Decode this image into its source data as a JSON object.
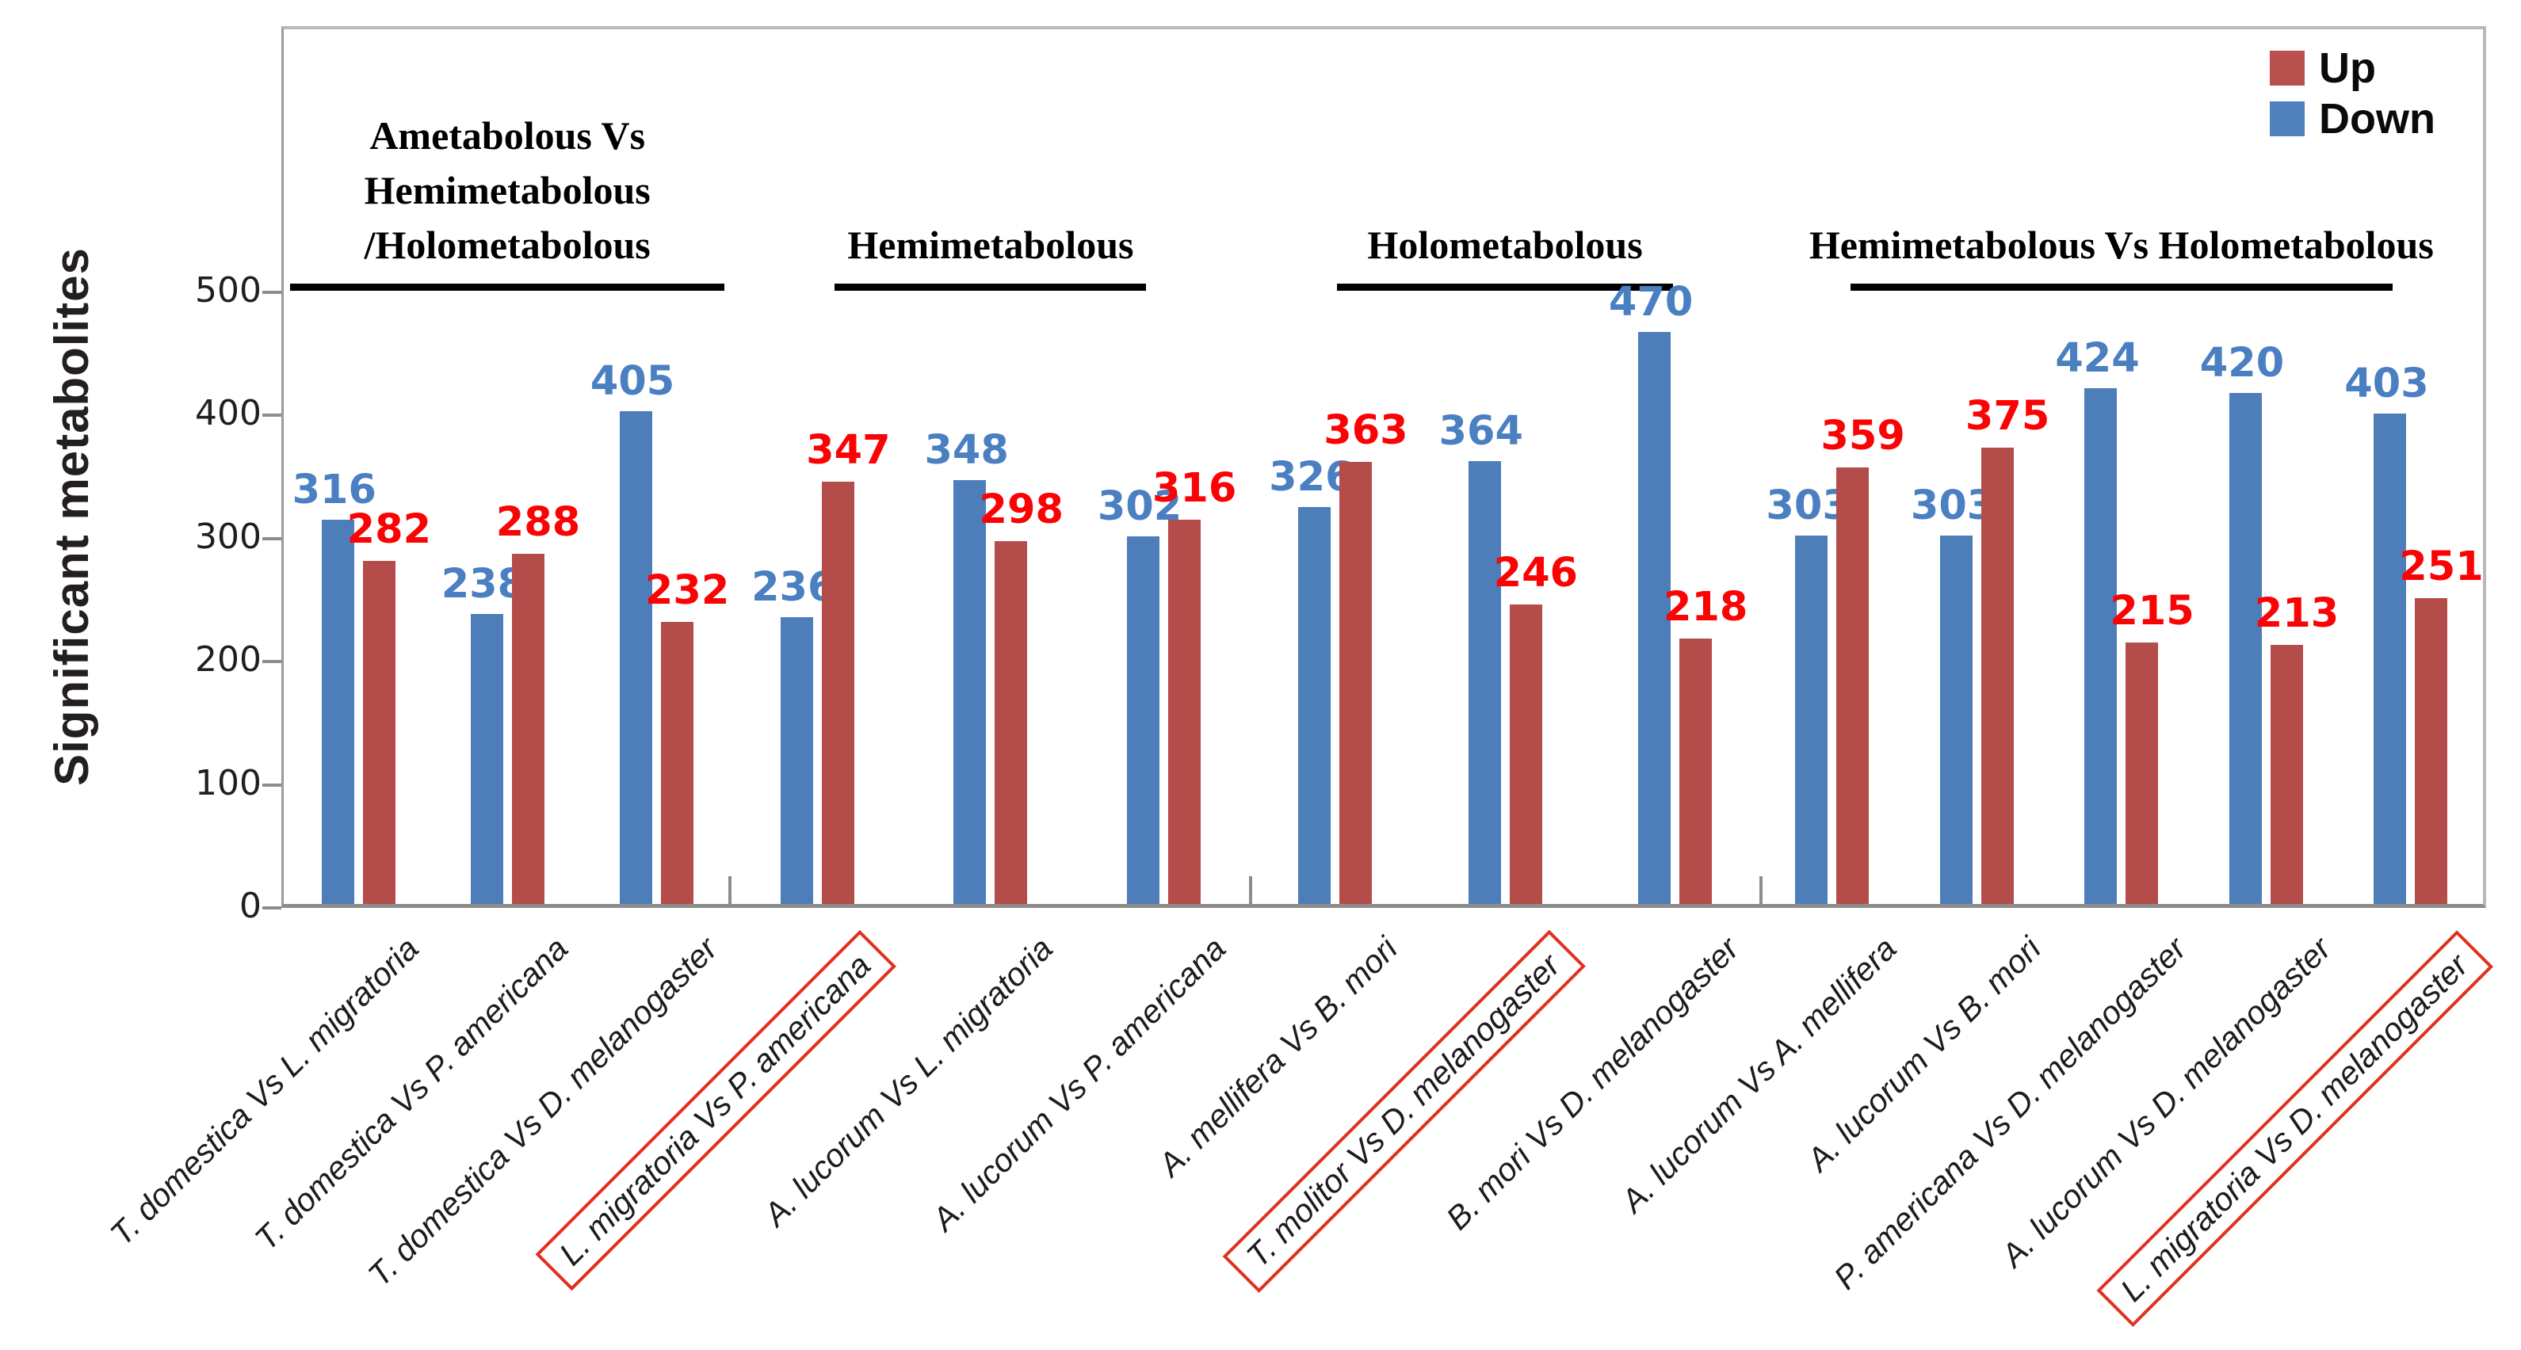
{
  "figure": {
    "y_axis_title": "Significant metabolites"
  },
  "chart_data": {
    "type": "bar",
    "title": "",
    "xlabel": "",
    "ylabel": "Significant metabolites",
    "ylim": [
      0,
      500
    ],
    "y_ticks": [
      0,
      100,
      200,
      300,
      400,
      500
    ],
    "grid": false,
    "legend_position": "top-right",
    "series_names": [
      "Down",
      "Up"
    ],
    "legend": [
      {
        "label": "Up",
        "color": "#b8504d"
      },
      {
        "label": "Down",
        "color": "#5081bd"
      }
    ],
    "colors": {
      "down_bar": "#4d7eba",
      "up_bar": "#b44c49",
      "down_label": "#4a7fc1",
      "up_label": "#fb0304",
      "box_border": "#e0301e"
    },
    "groups": [
      {
        "title": "Ametabolous Vs Hemimetabolous\n/Holometabolous",
        "categories": [
          {
            "label": "T. domestica Vs L. migratoria",
            "down": 316,
            "up": 282,
            "boxed": false
          },
          {
            "label": "T. domestica  Vs P. americana",
            "down": 238,
            "up": 288,
            "boxed": false
          },
          {
            "label": "T. domestica Vs D. melanogaster",
            "down": 405,
            "up": 232,
            "boxed": false
          }
        ]
      },
      {
        "title": "Hemimetabolous",
        "categories": [
          {
            "label": "L. migratoria  Vs P. americana",
            "down": 236,
            "up": 347,
            "boxed": true
          },
          {
            "label": "A. lucorum Vs L. migratoria",
            "down": 348,
            "up": 298,
            "boxed": false
          },
          {
            "label": "A. lucorum Vs P. americana",
            "down": 302,
            "up": 316,
            "boxed": false
          }
        ]
      },
      {
        "title": "Holometabolous",
        "categories": [
          {
            "label": "A. mellifera Vs B. mori",
            "down": 326,
            "up": 363,
            "boxed": false
          },
          {
            "label": "T.  molitor Vs D. melanogaster",
            "down": 364,
            "up": 246,
            "boxed": true
          },
          {
            "label": "B. mori Vs D. melanogaster",
            "down": 470,
            "up": 218,
            "boxed": false
          }
        ]
      },
      {
        "title": "Hemimetabolous Vs Holometabolous",
        "categories": [
          {
            "label": "A. lucorum Vs A. mellifera",
            "down": 303,
            "up": 359,
            "boxed": false
          },
          {
            "label": "A. lucorum Vs B. mori",
            "down": 303,
            "up": 375,
            "boxed": false
          },
          {
            "label": "P. americana Vs D. melanogaster",
            "down": 424,
            "up": 215,
            "boxed": false
          },
          {
            "label": "A. lucorum Vs  D. melanogaster",
            "down": 420,
            "up": 213,
            "boxed": false
          },
          {
            "label": "L. migratoria  Vs D. melanogaster",
            "down": 403,
            "up": 251,
            "boxed": true
          }
        ]
      }
    ]
  }
}
